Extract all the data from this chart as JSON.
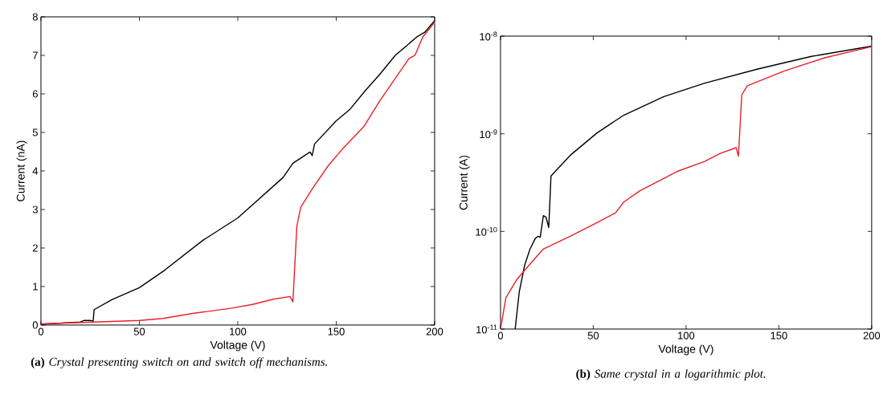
{
  "chart_data": [
    {
      "type": "line",
      "xlabel": "Voltage (V)",
      "ylabel": "Current (nA)",
      "xlim": [
        0,
        200
      ],
      "ylim": [
        0,
        8
      ],
      "xticks": [
        0,
        50,
        100,
        150,
        200
      ],
      "yticks": [
        0,
        1,
        2,
        3,
        4,
        5,
        6,
        7,
        8
      ],
      "series": [
        {
          "color": "#000000",
          "x": [
            0,
            20,
            22,
            25,
            26.5,
            27,
            36,
            50,
            63,
            82,
            100,
            123,
            128,
            136.7,
            137.8,
            139,
            150,
            157,
            165,
            172,
            180,
            191,
            195,
            200
          ],
          "values": [
            0.02,
            0.08,
            0.12,
            0.12,
            0.1,
            0.4,
            0.66,
            0.97,
            1.43,
            2.19,
            2.78,
            3.83,
            4.2,
            4.49,
            4.4,
            4.7,
            5.3,
            5.6,
            6.1,
            6.5,
            7.0,
            7.48,
            7.6,
            7.9
          ]
        },
        {
          "color": "#e8202a",
          "x": [
            0,
            50,
            62,
            77,
            97,
            108,
            118,
            126.5,
            128,
            130,
            132,
            138,
            146,
            153,
            164,
            172,
            179,
            187,
            190,
            194,
            199.5
          ],
          "values": [
            0.03,
            0.12,
            0.17,
            0.3,
            0.44,
            0.54,
            0.67,
            0.74,
            0.6,
            2.57,
            3.06,
            3.55,
            4.14,
            4.56,
            5.15,
            5.81,
            6.33,
            6.92,
            7.0,
            7.48,
            7.83
          ]
        }
      ],
      "annotations": [
        "**(a)** *Crystal presenting switch on and switch off mechanisms.*"
      ]
    },
    {
      "type": "line",
      "xlabel": "Voltage (V)",
      "ylabel": "Current (A)",
      "log": "y",
      "xlim": [
        0,
        200
      ],
      "ylim": [
        1e-11,
        1e-08
      ],
      "xticks": [
        0,
        50,
        100,
        150,
        200
      ],
      "yticks": [
        {
          "value": 1e-11,
          "label": "10$^{-11}$"
        },
        {
          "value": 1e-10,
          "label": "10$^{-10}$"
        },
        {
          "value": 1e-09,
          "label": "10$^{-9}$"
        },
        {
          "value": 1e-08,
          "label": "10$^{-8}$"
        }
      ],
      "series": [
        {
          "color": "#000000",
          "x": [
            7.9,
            10.1,
            13,
            15.9,
            18.8,
            20.2,
            21.4,
            23.1,
            24.5,
            26,
            27.2,
            37.5,
            52,
            66.4,
            88,
            110,
            138.6,
            167.5,
            200
          ],
          "values": [
            1e-11,
            2.4e-11,
            4.5e-11,
            6.6e-11,
            8.5e-11,
            8.9e-11,
            8.7e-11,
            1.45e-10,
            1.4e-10,
            1.1e-10,
            3.7e-10,
            6e-10,
            1.02e-09,
            1.55e-09,
            2.4e-09,
            3.3e-09,
            4.6e-09,
            6.2e-09,
            7.9e-09
          ]
        },
        {
          "color": "#e8202a",
          "x": [
            0,
            2.9,
            8.7,
            13,
            23,
            37.5,
            52,
            62,
            66.4,
            75,
            95,
            110,
            118.4,
            127,
            128.2,
            130,
            133,
            153,
            174.7,
            200
          ],
          "values": [
            1e-11,
            2.1e-11,
            3.2e-11,
            4e-11,
            6.6e-11,
            8.9e-11,
            1.23e-10,
            1.55e-10,
            2e-10,
            2.6e-10,
            4.1e-10,
            5.2e-10,
            6.3e-10,
            7.2e-10,
            5.9e-10,
            2.5e-09,
            3.1e-09,
            4.4e-09,
            6e-09,
            7.8e-09
          ]
        }
      ],
      "annotations": [
        "**(b)** *Same crystal in a logarithmic plot.*"
      ]
    }
  ]
}
